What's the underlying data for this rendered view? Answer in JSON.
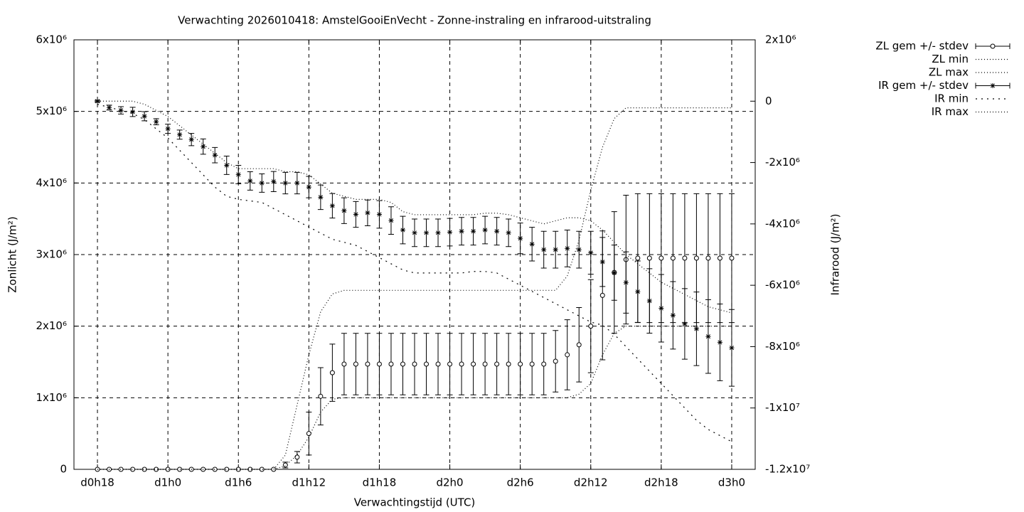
{
  "chart_data": {
    "type": "errorbar",
    "title": "Verwachting 2026010418: AmstelGooiEnVecht - Zonne-instraling en infrarood-uitstraling",
    "xlabel": "Verwachtingstijd (UTC)",
    "ylabel": "Zonlicht (J/m²)",
    "y2label": "Infrarood (J/m²)",
    "x": [
      18,
      19,
      20,
      21,
      22,
      23,
      24,
      25,
      26,
      27,
      28,
      29,
      30,
      31,
      32,
      33,
      34,
      35,
      36,
      37,
      38,
      39,
      40,
      41,
      42,
      43,
      44,
      45,
      46,
      47,
      48,
      49,
      50,
      51,
      52,
      53,
      54,
      55,
      56,
      57,
      58,
      59,
      60,
      61,
      62,
      63,
      64,
      65,
      66,
      67,
      68,
      69,
      70,
      71,
      72
    ],
    "xlim": [
      16,
      74
    ],
    "xticks": [
      {
        "value": 18,
        "label": "d0h18"
      },
      {
        "value": 24,
        "label": "d1h0"
      },
      {
        "value": 30,
        "label": "d1h6"
      },
      {
        "value": 36,
        "label": "d1h12"
      },
      {
        "value": 42,
        "label": "d1h18"
      },
      {
        "value": 48,
        "label": "d2h0"
      },
      {
        "value": 54,
        "label": "d2h6"
      },
      {
        "value": 60,
        "label": "d2h12"
      },
      {
        "value": 66,
        "label": "d2h18"
      },
      {
        "value": 72,
        "label": "d3h0"
      }
    ],
    "ylim": [
      0,
      6000000
    ],
    "yticks": [
      0,
      {
        "value": 1000000,
        "label": "1x10⁶"
      },
      {
        "value": 2000000,
        "label": "2x10⁶"
      },
      {
        "value": 3000000,
        "label": "3x10⁶"
      },
      {
        "value": 4000000,
        "label": "4x10⁶"
      },
      {
        "value": 5000000,
        "label": "5x10⁶"
      },
      {
        "value": 6000000,
        "label": "6x10⁶"
      }
    ],
    "y2lim": [
      -12000000,
      2000000
    ],
    "y2ticks": [
      {
        "value": 2000000,
        "label": "2x10⁶"
      },
      0,
      {
        "value": -2000000,
        "label": "-2x10⁶"
      },
      {
        "value": -4000000,
        "label": "-4x10⁶"
      },
      {
        "value": -6000000,
        "label": "-6x10⁶"
      },
      {
        "value": -8000000,
        "label": "-8x10⁶"
      },
      {
        "value": -10000000,
        "label": "-1x10⁷"
      },
      {
        "value": -12000000,
        "label": "-1.2x10⁷"
      }
    ],
    "grid": true,
    "legend": "outside right",
    "series": [
      {
        "name": "ZL gem +/- stdev",
        "color": "#000000",
        "marker": "circle",
        "axis": "y",
        "values": [
          0,
          0,
          0,
          0,
          0,
          0,
          0,
          0,
          0,
          0,
          0,
          0,
          0,
          0,
          0,
          0,
          60000.0,
          170000.0,
          500000.0,
          1020000.0,
          1350000.0,
          1470000.0,
          1470000.0,
          1470000.0,
          1470000.0,
          1470000.0,
          1470000.0,
          1470000.0,
          1470000.0,
          1470000.0,
          1470000.0,
          1470000.0,
          1470000.0,
          1470000.0,
          1470000.0,
          1470000.0,
          1470000.0,
          1470000.0,
          1470000.0,
          1510000.0,
          1600000.0,
          1740000.0,
          2000000.0,
          2430000.0,
          2750000.0,
          2930000.0,
          2950000.0,
          2950000.0,
          2950000.0,
          2950000.0,
          2950000.0,
          2950000.0,
          2950000.0,
          2950000.0,
          2950000.0
        ],
        "errors": [
          0,
          0,
          0,
          0,
          0,
          0,
          0,
          0,
          0,
          0,
          0,
          0,
          0,
          0,
          0,
          0,
          40000.0,
          80000.0,
          300000.0,
          400000.0,
          400000.0,
          430000.0,
          430000.0,
          430000.0,
          430000.0,
          430000.0,
          430000.0,
          430000.0,
          430000.0,
          430000.0,
          430000.0,
          430000.0,
          430000.0,
          430000.0,
          430000.0,
          430000.0,
          430000.0,
          430000.0,
          430000.0,
          430000.0,
          490000.0,
          520000.0,
          650000.0,
          900000.0,
          850000.0,
          900000.0,
          900000.0,
          900000.0,
          900000.0,
          900000.0,
          900000.0,
          900000.0,
          900000.0,
          900000.0,
          900000.0
        ]
      },
      {
        "name": "ZL min",
        "color": "#000000",
        "dash": "1,3",
        "axis": "y",
        "values": [
          0,
          0,
          0,
          0,
          0,
          0,
          0,
          0,
          0,
          0,
          0,
          0,
          0,
          0,
          0,
          0,
          50000.0,
          200000.0,
          450000.0,
          800000.0,
          980000.0,
          1000000.0,
          1000000.0,
          1000000.0,
          1000000.0,
          1000000.0,
          1000000.0,
          1000000.0,
          1000000.0,
          1000000.0,
          1000000.0,
          1000000.0,
          1000000.0,
          1000000.0,
          1000000.0,
          1000000.0,
          1000000.0,
          1000000.0,
          1000000.0,
          1000000.0,
          1000000.0,
          1050000.0,
          1200000.0,
          1600000.0,
          1900000.0,
          2000000.0,
          2000000.0,
          2000000.0,
          2000000.0,
          2000000.0,
          2000000.0,
          2000000.0,
          2000000.0,
          2000000.0,
          2000000.0
        ]
      },
      {
        "name": "ZL max",
        "color": "#000000",
        "dash": "1,3",
        "axis": "y",
        "values": [
          0,
          0,
          0,
          0,
          0,
          0,
          0,
          0,
          0,
          0,
          0,
          0,
          0,
          0,
          0,
          0,
          200000.0,
          900000.0,
          1600000.0,
          2200000.0,
          2450000.0,
          2500000.0,
          2500000.0,
          2500000.0,
          2500000.0,
          2500000.0,
          2500000.0,
          2500000.0,
          2500000.0,
          2500000.0,
          2500000.0,
          2500000.0,
          2500000.0,
          2500000.0,
          2500000.0,
          2500000.0,
          2500000.0,
          2500000.0,
          2500000.0,
          2500000.0,
          2700000.0,
          3200000.0,
          3900000.0,
          4500000.0,
          4900000.0,
          5050000.0,
          5050000.0,
          5050000.0,
          5050000.0,
          5050000.0,
          5050000.0,
          5050000.0,
          5050000.0,
          5050000.0,
          5050000.0
        ]
      },
      {
        "name": "IR gem +/- stdev",
        "color": "#000000",
        "marker": "star",
        "axis": "y2",
        "values": [
          0,
          -210000.0,
          -300000.0,
          -350000.0,
          -490000.0,
          -670000.0,
          -900000.0,
          -1090000.0,
          -1250000.0,
          -1480000.0,
          -1760000.0,
          -2090000.0,
          -2390000.0,
          -2600000.0,
          -2670000.0,
          -2620000.0,
          -2670000.0,
          -2670000.0,
          -2800000.0,
          -3130000.0,
          -3410000.0,
          -3570000.0,
          -3690000.0,
          -3640000.0,
          -3690000.0,
          -3890000.0,
          -4200000.0,
          -4290000.0,
          -4290000.0,
          -4290000.0,
          -4270000.0,
          -4240000.0,
          -4240000.0,
          -4200000.0,
          -4240000.0,
          -4290000.0,
          -4470000.0,
          -4660000.0,
          -4840000.0,
          -4840000.0,
          -4800000.0,
          -4840000.0,
          -4940000.0,
          -5240000.0,
          -5590000.0,
          -5910000.0,
          -6210000.0,
          -6510000.0,
          -6750000.0,
          -6980000.0,
          -7260000.0,
          -7420000.0,
          -7670000.0,
          -7860000.0,
          -8040000.0
        ],
        "errors": [
          30000.0,
          80000.0,
          120000.0,
          150000.0,
          150000.0,
          100000.0,
          150000.0,
          150000.0,
          200000.0,
          250000.0,
          250000.0,
          300000.0,
          300000.0,
          300000.0,
          300000.0,
          330000.0,
          350000.0,
          350000.0,
          350000.0,
          400000.0,
          400000.0,
          420000.0,
          420000.0,
          420000.0,
          450000.0,
          450000.0,
          450000.0,
          450000.0,
          450000.0,
          450000.0,
          450000.0,
          450000.0,
          450000.0,
          450000.0,
          450000.0,
          450000.0,
          500000.0,
          550000.0,
          600000.0,
          600000.0,
          600000.0,
          600000.0,
          700000.0,
          800000.0,
          900000.0,
          1000000.0,
          1000000.0,
          1050000.0,
          1100000.0,
          1100000.0,
          1150000.0,
          1200000.0,
          1200000.0,
          1250000.0,
          1250000.0
        ]
      },
      {
        "name": "IR min",
        "color": "#000000",
        "dash": "2,6",
        "axis": "y2",
        "values": [
          -100000.0,
          -200000.0,
          -300000.0,
          -400000.0,
          -600000.0,
          -900000.0,
          -1200000.0,
          -1600000.0,
          -2000000.0,
          -2400000.0,
          -2800000.0,
          -3100000.0,
          -3200000.0,
          -3250000.0,
          -3300000.0,
          -3500000.0,
          -3700000.0,
          -3900000.0,
          -4100000.0,
          -4300000.0,
          -4500000.0,
          -4600000.0,
          -4700000.0,
          -4900000.0,
          -5100000.0,
          -5300000.0,
          -5500000.0,
          -5600000.0,
          -5600000.0,
          -5600000.0,
          -5600000.0,
          -5600000.0,
          -5550000.0,
          -5550000.0,
          -5600000.0,
          -5800000.0,
          -6000000.0,
          -6200000.0,
          -6400000.0,
          -6600000.0,
          -6800000.0,
          -7000000.0,
          -7200000.0,
          -7300000.0,
          -7600000.0,
          -8000000.0,
          -8400000.0,
          -8800000.0,
          -9200000.0,
          -9600000.0,
          -10000000.0,
          -10400000.0,
          -10700000.0,
          -10900000.0,
          -11100000.0
        ]
      },
      {
        "name": "IR max",
        "color": "#000000",
        "dash": "1,3",
        "axis": "y2",
        "values": [
          0,
          0,
          0,
          0,
          -100000.0,
          -300000.0,
          -500000.0,
          -800000.0,
          -1100000.0,
          -1400000.0,
          -1700000.0,
          -2000000.0,
          -2200000.0,
          -2200000.0,
          -2200000.0,
          -2200000.0,
          -2300000.0,
          -2300000.0,
          -2400000.0,
          -2700000.0,
          -3000000.0,
          -3100000.0,
          -3200000.0,
          -3200000.0,
          -3200000.0,
          -3300000.0,
          -3600000.0,
          -3700000.0,
          -3700000.0,
          -3700000.0,
          -3700000.0,
          -3700000.0,
          -3700000.0,
          -3650000.0,
          -3650000.0,
          -3700000.0,
          -3800000.0,
          -3900000.0,
          -4000000.0,
          -3900000.0,
          -3800000.0,
          -3800000.0,
          -3900000.0,
          -4200000.0,
          -4600000.0,
          -5000000.0,
          -5300000.0,
          -5600000.0,
          -5900000.0,
          -6100000.0,
          -6300000.0,
          -6500000.0,
          -6700000.0,
          -6800000.0,
          -6900000.0
        ]
      }
    ]
  }
}
